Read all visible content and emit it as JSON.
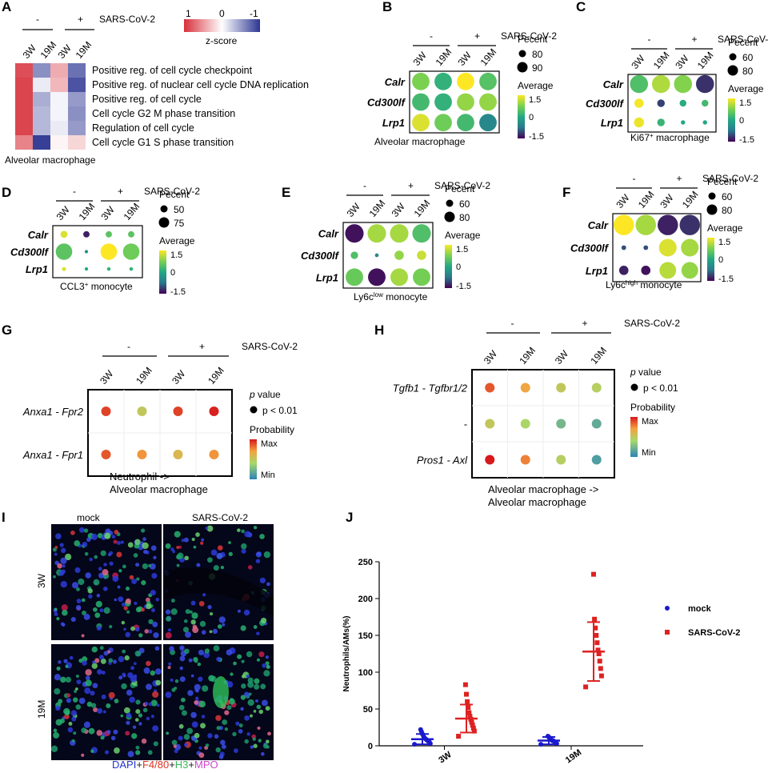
{
  "panel_letters": {
    "a": "A",
    "b": "B",
    "c": "C",
    "d": "D",
    "e": "E",
    "f": "F",
    "g": "G",
    "h": "H",
    "i": "I",
    "j": "J"
  },
  "common": {
    "minus": "-",
    "plus": "+",
    "sars": "SARS-CoV-2",
    "ages": [
      "3W",
      "19M",
      "3W",
      "19M"
    ],
    "genes": [
      "Calr",
      "Cd300lf",
      "Lrp1"
    ],
    "pecent": "Pecent",
    "average": "Average",
    "p_value_p": "p",
    "p_value_rest": " value",
    "p_thresh": "p < 0.01",
    "probability": "Probability",
    "max": "Max",
    "min": "Min"
  },
  "panel_a": {
    "scale_ticks": [
      "1",
      "0",
      "-1"
    ],
    "scale_label": "z-score",
    "rows": [
      "Positive reg. of cell cycle checkpoint",
      "Positive reg. of nuclear cell cycle DNA replication",
      "Positive reg. of cell cycle",
      "Cell cycle G2 M phase transition",
      "Regulation of cell cycle",
      "Cell cycle G1 S phase transition"
    ],
    "zscores": [
      [
        0.85,
        -0.55,
        0.4,
        -0.7
      ],
      [
        0.9,
        -0.1,
        0.35,
        -0.85
      ],
      [
        0.9,
        -0.4,
        -0.05,
        -0.5
      ],
      [
        0.9,
        -0.35,
        -0.05,
        -0.55
      ],
      [
        0.9,
        -0.35,
        -0.1,
        -0.5
      ],
      [
        0.6,
        -0.95,
        0.05,
        0.2
      ]
    ],
    "caption": "Alveolar macrophage"
  },
  "dot_panels": [
    {
      "id": "b",
      "caption_pre": "Alveolar macrophage",
      "caption_sup": "",
      "caption_post": "",
      "pct_legend": [
        "80",
        "90"
      ],
      "avg_ticks": [
        "1.5",
        "0",
        "-1.5"
      ],
      "dots": [
        [
          0.75,
          0.15,
          1.5,
          0.45
        ],
        [
          0.3,
          0.15,
          0.9,
          0.9
        ],
        [
          1.3,
          0.65,
          0.3,
          -0.5
        ]
      ],
      "sizes": [
        [
          0.9,
          0.9,
          0.9,
          0.9
        ],
        [
          0.9,
          0.9,
          0.9,
          0.9
        ],
        [
          0.9,
          0.9,
          0.9,
          0.9
        ]
      ]
    },
    {
      "id": "c",
      "caption_pre": "Ki67",
      "caption_sup": "+",
      "caption_post": " macrophage",
      "pct_legend": [
        "60",
        "80"
      ],
      "avg_ticks": [
        "1.5",
        "0",
        "-1.5"
      ],
      "dots": [
        [
          0.4,
          1.05,
          0.8,
          -1.2
        ],
        [
          1.45,
          -1.1,
          0.05,
          0.3
        ],
        [
          1.4,
          0.2,
          0.0,
          0.0
        ]
      ],
      "sizes": [
        [
          1.0,
          1.0,
          1.0,
          1.0
        ],
        [
          0.45,
          0.35,
          0.3,
          0.3
        ],
        [
          0.5,
          0.35,
          0.15,
          0.15
        ]
      ]
    },
    {
      "id": "d",
      "caption_pre": "CCL3",
      "caption_sup": "+",
      "caption_post": " monocyte",
      "pct_legend": [
        "50",
        "75"
      ],
      "avg_ticks": [
        "1.5",
        "0",
        "-1.5"
      ],
      "dots": [
        [
          1.3,
          -1.3,
          0.5,
          0.5
        ],
        [
          0.5,
          -0.4,
          1.5,
          0.65
        ],
        [
          1.3,
          0.0,
          0.2,
          0.2
        ]
      ],
      "sizes": [
        [
          0.35,
          0.3,
          0.3,
          0.3
        ],
        [
          1.0,
          0.1,
          1.0,
          1.0
        ],
        [
          0.15,
          0.1,
          0.12,
          0.12
        ]
      ]
    },
    {
      "id": "e",
      "caption_pre": "Ly6c",
      "caption_sup": "low",
      "caption_post": " monocyte",
      "pct_legend": [
        "60",
        "80"
      ],
      "avg_ticks": [
        "1.5",
        "0",
        "-1.5"
      ],
      "dots": [
        [
          -1.4,
          1.0,
          1.0,
          0.4
        ],
        [
          0.4,
          -0.5,
          0.9,
          1.2
        ],
        [
          0.6,
          -1.4,
          1.0,
          0.7
        ]
      ],
      "sizes": [
        [
          0.9,
          0.9,
          0.9,
          0.9
        ],
        [
          0.3,
          0.1,
          0.4,
          0.4
        ],
        [
          0.85,
          0.85,
          0.85,
          0.85
        ]
      ]
    },
    {
      "id": "f",
      "caption_pre": "Ly6c",
      "caption_sup": "high",
      "caption_post": " monocyte",
      "pct_legend": [
        "60",
        "80"
      ],
      "avg_ticks": [
        "1.5",
        "0",
        "-1.5"
      ],
      "dots": [
        [
          1.5,
          1.0,
          -1.3,
          -1.2
        ],
        [
          -1.0,
          -1.0,
          1.3,
          1.0
        ],
        [
          -1.3,
          -1.4,
          1.1,
          0.9
        ]
      ],
      "sizes": [
        [
          1.0,
          1.0,
          1.0,
          1.0
        ],
        [
          0.15,
          0.15,
          0.85,
          0.85
        ],
        [
          0.4,
          0.4,
          0.8,
          0.8
        ]
      ]
    }
  ],
  "panel_g": {
    "rows": [
      "Anxa1 - Fpr2",
      "Anxa1 - Fpr1"
    ],
    "probs": [
      [
        0.9,
        0.45,
        0.9,
        0.98
      ],
      [
        0.85,
        0.7,
        0.55,
        0.7
      ]
    ],
    "caption": [
      "Neutrophil ->",
      "Alveolar macrophage"
    ]
  },
  "panel_h": {
    "rows": [
      "Tgfb1 - Tgfbr1/2",
      "-",
      "Pros1 - Axl"
    ],
    "probs": [
      [
        0.85,
        0.65,
        0.45,
        0.4
      ],
      [
        0.45,
        0.35,
        0.2,
        0.15
      ],
      [
        1.0,
        0.75,
        0.4,
        0.1
      ]
    ],
    "caption": [
      "Alveolar macrophage ->",
      "Alveolar macrophage"
    ]
  },
  "panel_i": {
    "col_labels": [
      "mock",
      "SARS-CoV-2"
    ],
    "row_labels": [
      "3W",
      "19M"
    ],
    "stain_parts": [
      {
        "text": "DAPI",
        "color": "#2233cc"
      },
      {
        "text": "+",
        "color": "#222222"
      },
      {
        "text": "F4/80",
        "color": "#dd3322"
      },
      {
        "text": "+",
        "color": "#222222"
      },
      {
        "text": "H3",
        "color": "#33bb55"
      },
      {
        "text": "+",
        "color": "#222222"
      },
      {
        "text": "MPO",
        "color": "#cc44cc"
      }
    ]
  },
  "chart_data": {
    "type": "scatter",
    "ylabel": "Neutrophils/AMs(%)",
    "categories": [
      "3W",
      "19M"
    ],
    "ylim": [
      0,
      250
    ],
    "yticks": [
      "0",
      "50",
      "100",
      "150",
      "200",
      "250"
    ],
    "legend_placement": "right",
    "series": [
      {
        "name": "mock",
        "color": "#1a1acc",
        "marker": "circle",
        "groups": [
          {
            "category": "3W",
            "mean": 9,
            "sd": 7,
            "values": [
              2,
              3,
              5,
              6,
              7,
              8,
              9,
              10,
              11,
              14,
              16,
              19,
              22
            ]
          },
          {
            "category": "19M",
            "mean": 7,
            "sd": 5,
            "values": [
              2,
              3,
              4,
              5,
              6,
              7,
              7,
              8,
              9,
              10,
              12,
              13
            ]
          }
        ]
      },
      {
        "name": "SARS-CoV-2",
        "color": "#dd2222",
        "marker": "square",
        "groups": [
          {
            "category": "3W",
            "mean": 37,
            "sd": 19,
            "values": [
              13,
              20,
              24,
              28,
              32,
              36,
              40,
              45,
              52,
              60,
              70,
              83
            ]
          },
          {
            "category": "19M",
            "mean": 128,
            "sd": 40,
            "values": [
              80,
              95,
              105,
              115,
              125,
              130,
              140,
              150,
              160,
              172,
              233
            ]
          }
        ]
      }
    ]
  }
}
